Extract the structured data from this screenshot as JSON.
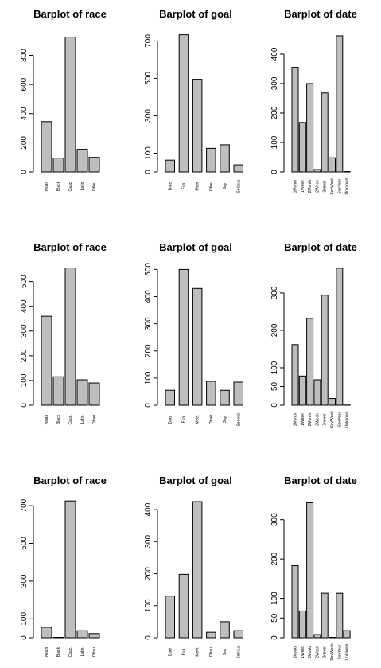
{
  "chart_data": [
    {
      "type": "bar",
      "title": "Barplot of race",
      "categories": [
        "Asian",
        "Black",
        "Cauc.",
        "Latin",
        "Other"
      ],
      "values": [
        345,
        95,
        925,
        155,
        100
      ],
      "ylim": [
        0,
        950
      ],
      "yticks": [
        0,
        200,
        400,
        600,
        800
      ]
    },
    {
      "type": "bar",
      "title": "Barplot of goal",
      "categories": [
        "Date",
        "Fun",
        "Meet",
        "Other",
        "Say",
        "Serious"
      ],
      "values": [
        63,
        733,
        495,
        126,
        145,
        38
      ],
      "ylim": [
        0,
        740
      ],
      "yticks": [
        0,
        100,
        300,
        500,
        700
      ]
    },
    {
      "type": "bar",
      "title": "Barplot of date",
      "categories": [
        "1Month",
        "1Week",
        "2Month",
        "2Week",
        "3never",
        "SevWeek",
        "SevYear",
        "Unknown"
      ],
      "values": [
        355,
        168,
        300,
        8,
        268,
        48,
        462,
        0
      ],
      "ylim": [
        0,
        470
      ],
      "yticks": [
        0,
        100,
        200,
        300,
        400
      ]
    },
    {
      "type": "bar",
      "title": "Barplot of race",
      "categories": [
        "Asian",
        "Black",
        "Cauc.",
        "Latin",
        "Other"
      ],
      "values": [
        360,
        115,
        555,
        103,
        90
      ],
      "ylim": [
        0,
        560
      ],
      "yticks": [
        0,
        100,
        200,
        300,
        400,
        500
      ]
    },
    {
      "type": "bar",
      "title": "Barplot of goal",
      "categories": [
        "Date",
        "Fun",
        "Meet",
        "Other",
        "Say",
        "Serious"
      ],
      "values": [
        55,
        500,
        430,
        88,
        55,
        85
      ],
      "ylim": [
        0,
        510
      ],
      "yticks": [
        0,
        100,
        200,
        300,
        400,
        500
      ]
    },
    {
      "type": "bar",
      "title": "Barplot of date",
      "categories": [
        "1Month",
        "1Week",
        "2Month",
        "2Week",
        "3never",
        "SevWeek",
        "SevYear",
        "Unknown"
      ],
      "values": [
        162,
        78,
        232,
        68,
        294,
        18,
        366,
        3
      ],
      "ylim": [
        0,
        370
      ],
      "yticks": [
        0,
        50,
        100,
        200,
        300
      ]
    },
    {
      "type": "bar",
      "title": "Barplot of race",
      "categories": [
        "Asian",
        "Black",
        "Cauc.",
        "Latin",
        "Other"
      ],
      "values": [
        55,
        0,
        725,
        37,
        22
      ],
      "ylim": [
        0,
        730
      ],
      "yticks": [
        0,
        100,
        300,
        500,
        700
      ]
    },
    {
      "type": "bar",
      "title": "Barplot of goal",
      "categories": [
        "Date",
        "Fun",
        "Meet",
        "Other",
        "Say",
        "Serious"
      ],
      "values": [
        130,
        198,
        425,
        17,
        50,
        22
      ],
      "ylim": [
        0,
        430
      ],
      "yticks": [
        0,
        100,
        200,
        300,
        400
      ]
    },
    {
      "type": "bar",
      "title": "Barplot of date",
      "categories": [
        "1Month",
        "1Week",
        "2Month",
        "2Week",
        "3never",
        "SevWeek",
        "SevYear",
        "Unknown"
      ],
      "values": [
        183,
        68,
        343,
        8,
        113,
        0,
        113,
        18
      ],
      "ylim": [
        0,
        350
      ],
      "yticks": [
        0,
        50,
        100,
        200,
        300
      ]
    }
  ]
}
